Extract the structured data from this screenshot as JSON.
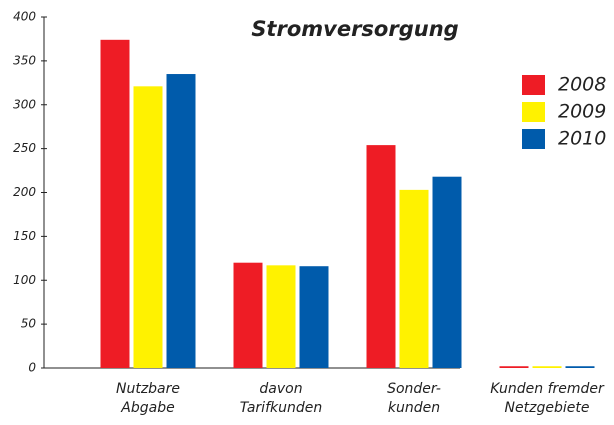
{
  "chart_data": {
    "type": "bar",
    "title": "Stromversorgung",
    "categories": [
      [
        "Nutzbare",
        "Abgabe"
      ],
      [
        "davon",
        "Tarifkunden"
      ],
      [
        "Sonder-",
        "kunden"
      ],
      [
        "Kunden fremder",
        "Netzgebiete"
      ]
    ],
    "series": [
      {
        "name": "2008",
        "color": "#ee1c25",
        "values": [
          374,
          120,
          254,
          2
        ]
      },
      {
        "name": "2009",
        "color": "#fff200",
        "values": [
          321,
          117,
          203,
          2
        ]
      },
      {
        "name": "2010",
        "color": "#005bab",
        "values": [
          335,
          116,
          218,
          2
        ]
      }
    ],
    "ylim": [
      0,
      400
    ],
    "yticks": [
      0,
      50,
      100,
      150,
      200,
      250,
      300,
      350,
      400
    ],
    "legend": "right"
  }
}
